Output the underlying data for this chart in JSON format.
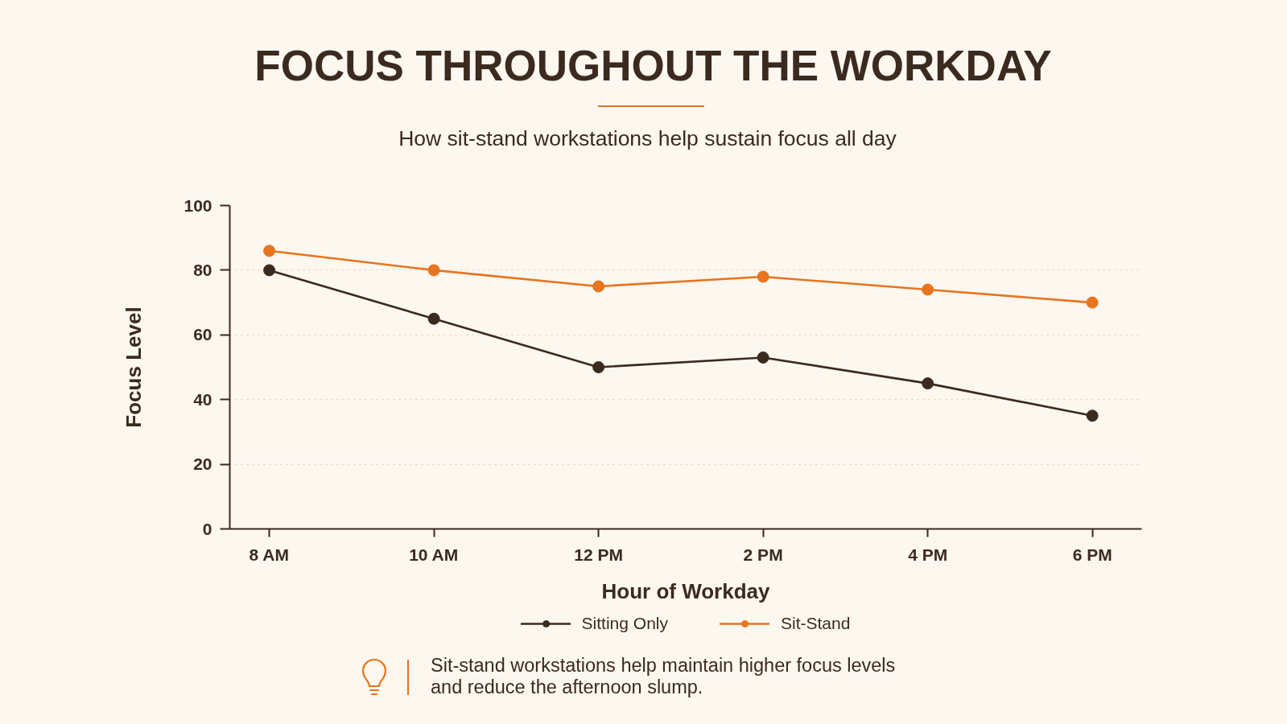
{
  "chart_data": {
    "type": "line",
    "title": "FOCUS THROUGHOUT THE WORKDAY",
    "subtitle": "How sit-stand workstations help sustain focus all day",
    "xlabel": "Hour of Workday",
    "ylabel": "Focus Level",
    "categories": [
      "8 AM",
      "10 AM",
      "12 PM",
      "2 PM",
      "4 PM",
      "6 PM"
    ],
    "series": [
      {
        "name": "Sitting Only",
        "color": "#3b2a1f",
        "values": [
          80,
          65,
          50,
          53,
          45,
          35
        ]
      },
      {
        "name": "Sit-Stand",
        "color": "#e8741e",
        "values": [
          86,
          80,
          75,
          78,
          74,
          70
        ]
      }
    ],
    "ylim": [
      0,
      100
    ],
    "yticks": [
      0,
      20,
      40,
      60,
      80,
      100
    ],
    "grid": "y",
    "legend": "bottom",
    "marker": "circle",
    "line_style": "solid",
    "annotations": [
      "Sit-stand workstations help maintain higher focus levels and reduce the afternoon slump."
    ]
  }
}
